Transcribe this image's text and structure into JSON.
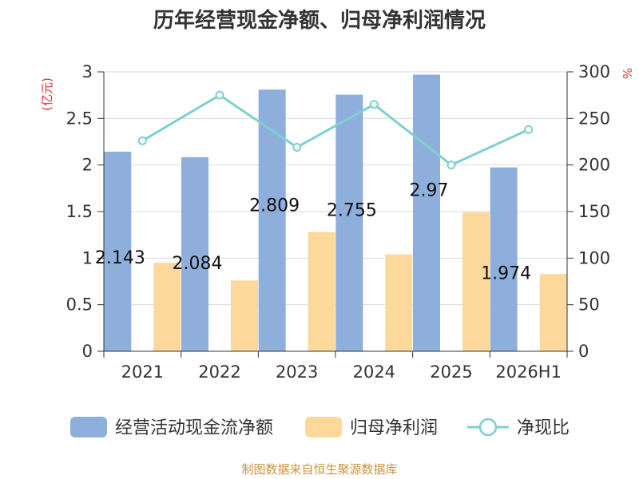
{
  "chart_data": {
    "type": "bar",
    "title": "历年经营现金净额、归母净利润情况",
    "categories": [
      "2021",
      "2022",
      "2023",
      "2024",
      "2025",
      "2026H1"
    ],
    "series": [
      {
        "name": "经营活动现金流净额",
        "type": "bar",
        "axis": "left",
        "values": [
          2.143,
          2.084,
          2.809,
          2.755,
          2.97,
          1.974
        ],
        "color": "#8eaedb"
      },
      {
        "name": "归母净利润",
        "type": "bar",
        "axis": "left",
        "values": [
          0.95,
          0.76,
          1.28,
          1.04,
          1.49,
          0.83
        ],
        "color": "#fdd89b"
      },
      {
        "name": "净现比",
        "type": "line",
        "axis": "right",
        "values": [
          226,
          275,
          219,
          265,
          200,
          238
        ],
        "color": "#7fd0d0"
      }
    ],
    "data_labels": [
      "2.143",
      "2.084",
      "2.809",
      "2.755",
      "2.97",
      "1.974"
    ],
    "y_left": {
      "unit": "(亿元)",
      "ylim": [
        0,
        3
      ],
      "ticks": [
        "0",
        "0.5",
        "1",
        "1.5",
        "2",
        "2.5",
        "3"
      ]
    },
    "y_right": {
      "unit": "%",
      "ylim": [
        0,
        300
      ],
      "ticks": [
        "0",
        "50",
        "100",
        "150",
        "200",
        "250",
        "300"
      ]
    },
    "legend_position": "bottom",
    "grid": true,
    "source": "制图数据来自恒生聚源数据库"
  }
}
